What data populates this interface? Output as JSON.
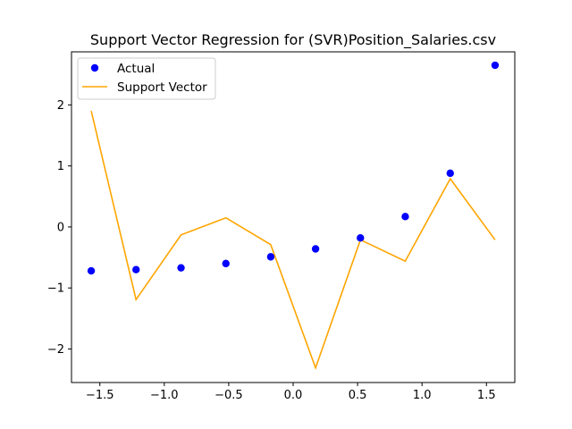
{
  "chart_data": {
    "type": "scatter+line",
    "title": "Support Vector Regression for (SVR)Position_Salaries.csv",
    "xlabel": "",
    "ylabel": "",
    "xlim": [
      -1.72,
      1.72
    ],
    "ylim": [
      -2.55,
      2.87
    ],
    "xticks": [
      -1.5,
      -1.0,
      -0.5,
      0.0,
      0.5,
      1.0,
      1.5
    ],
    "xtick_labels": [
      "−1.5",
      "−1.0",
      "−0.5",
      "0.0",
      "0.5",
      "1.0",
      "1.5"
    ],
    "yticks": [
      -2,
      -1,
      0,
      1,
      2
    ],
    "ytick_labels": [
      "−2",
      "−1",
      "0",
      "1",
      "2"
    ],
    "grid": false,
    "legend_position": "top-left",
    "series": [
      {
        "name": "Actual",
        "kind": "scatter",
        "color": "#0000ff",
        "x": [
          -1.567,
          -1.219,
          -0.87,
          -0.522,
          -0.174,
          0.174,
          0.522,
          0.87,
          1.219,
          1.567
        ],
        "y": [
          -0.72,
          -0.7,
          -0.67,
          -0.6,
          -0.49,
          -0.36,
          -0.18,
          0.17,
          0.88,
          2.65
        ]
      },
      {
        "name": "Support Vector",
        "kind": "line",
        "color": "#ffa500",
        "x": [
          -1.567,
          -1.219,
          -0.87,
          -0.522,
          -0.174,
          0.174,
          0.522,
          0.87,
          1.219,
          1.567
        ],
        "y": [
          1.9,
          -1.19,
          -0.13,
          0.15,
          -0.29,
          -2.31,
          -0.21,
          -0.56,
          0.79,
          -0.21
        ]
      }
    ]
  }
}
